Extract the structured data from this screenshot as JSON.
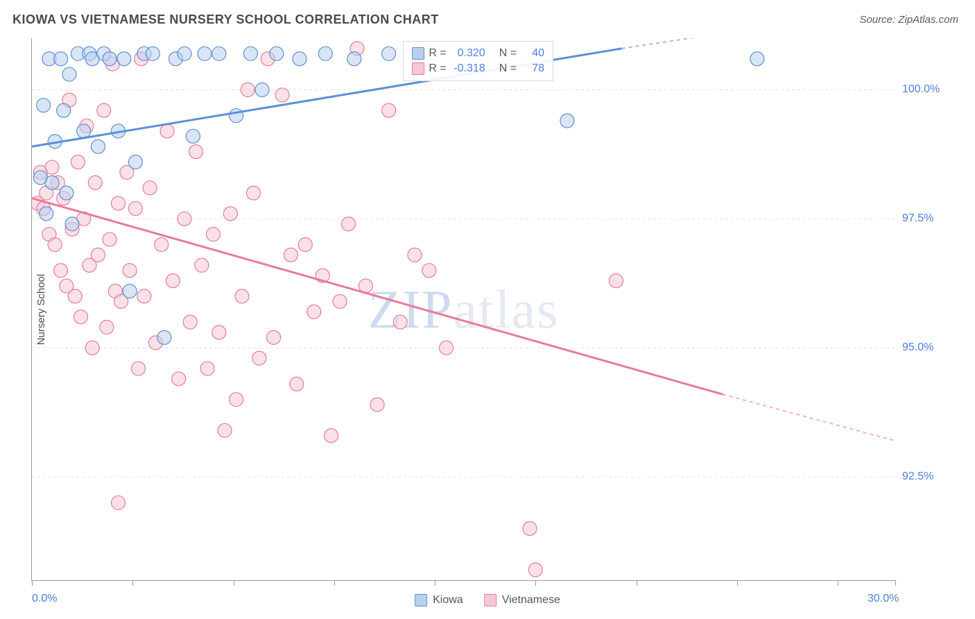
{
  "title": "KIOWA VS VIETNAMESE NURSERY SCHOOL CORRELATION CHART",
  "source": "Source: ZipAtlas.com",
  "ylabel": "Nursery School",
  "watermark": {
    "part1": "ZIP",
    "part2": "atlas"
  },
  "chart": {
    "type": "scatter",
    "xlim": [
      0,
      30
    ],
    "ylim": [
      90.5,
      101.0
    ],
    "xticks": [
      0,
      3.5,
      7,
      10.5,
      14,
      17.5,
      21,
      24.5,
      28,
      30
    ],
    "xticks_labeled": {
      "0": "0.0%",
      "30": "30.0%"
    },
    "yticks": [
      92.5,
      95.0,
      97.5,
      100.0
    ],
    "ytick_labels": [
      "92.5%",
      "95.0%",
      "97.5%",
      "100.0%"
    ],
    "grid_color": "#e2e2e2",
    "background_color": "#ffffff",
    "series": {
      "kiowa": {
        "label": "Kiowa",
        "color": "#5b8fd6",
        "fill": "#b9d0ec",
        "fill_opacity": 0.55,
        "marker_radius": 10,
        "R": "0.320",
        "N": "40",
        "trend": {
          "x1": 0,
          "y1": 98.9,
          "x2": 20.5,
          "y2": 100.8,
          "dash_x2": 30,
          "dash_y2": 101.6
        },
        "points": [
          [
            0.3,
            98.3
          ],
          [
            0.4,
            99.7
          ],
          [
            0.5,
            97.6
          ],
          [
            0.6,
            100.6
          ],
          [
            0.7,
            98.2
          ],
          [
            0.8,
            99.0
          ],
          [
            1.0,
            100.6
          ],
          [
            1.1,
            99.6
          ],
          [
            1.2,
            98.0
          ],
          [
            1.3,
            100.3
          ],
          [
            1.4,
            97.4
          ],
          [
            1.6,
            100.7
          ],
          [
            1.8,
            99.2
          ],
          [
            2.0,
            100.7
          ],
          [
            2.1,
            100.6
          ],
          [
            2.3,
            98.9
          ],
          [
            2.5,
            100.7
          ],
          [
            2.7,
            100.6
          ],
          [
            3.0,
            99.2
          ],
          [
            3.2,
            100.6
          ],
          [
            3.4,
            96.1
          ],
          [
            3.6,
            98.6
          ],
          [
            3.9,
            100.7
          ],
          [
            4.2,
            100.7
          ],
          [
            4.6,
            95.2
          ],
          [
            5.0,
            100.6
          ],
          [
            5.3,
            100.7
          ],
          [
            5.6,
            99.1
          ],
          [
            6.0,
            100.7
          ],
          [
            6.5,
            100.7
          ],
          [
            7.1,
            99.5
          ],
          [
            7.6,
            100.7
          ],
          [
            8.0,
            100.0
          ],
          [
            8.5,
            100.7
          ],
          [
            9.3,
            100.6
          ],
          [
            10.2,
            100.7
          ],
          [
            11.2,
            100.6
          ],
          [
            12.4,
            100.7
          ],
          [
            18.6,
            99.4
          ],
          [
            25.2,
            100.6
          ]
        ]
      },
      "vietnamese": {
        "label": "Vietnamese",
        "color": "#e67b9a",
        "fill": "#f6c8d6",
        "fill_opacity": 0.55,
        "marker_radius": 10,
        "R": "-0.318",
        "N": "78",
        "trend": {
          "x1": 0,
          "y1": 97.9,
          "x2": 24.0,
          "y2": 94.1,
          "dash_x2": 30,
          "dash_y2": 93.2
        },
        "points": [
          [
            0.2,
            97.8
          ],
          [
            0.3,
            98.4
          ],
          [
            0.4,
            97.7
          ],
          [
            0.5,
            98.0
          ],
          [
            0.6,
            97.2
          ],
          [
            0.7,
            98.5
          ],
          [
            0.8,
            97.0
          ],
          [
            0.9,
            98.2
          ],
          [
            1.0,
            96.5
          ],
          [
            1.1,
            97.9
          ],
          [
            1.2,
            96.2
          ],
          [
            1.3,
            99.8
          ],
          [
            1.4,
            97.3
          ],
          [
            1.5,
            96.0
          ],
          [
            1.6,
            98.6
          ],
          [
            1.7,
            95.6
          ],
          [
            1.8,
            97.5
          ],
          [
            1.9,
            99.3
          ],
          [
            2.0,
            96.6
          ],
          [
            2.1,
            95.0
          ],
          [
            2.2,
            98.2
          ],
          [
            2.3,
            96.8
          ],
          [
            2.5,
            99.6
          ],
          [
            2.6,
            95.4
          ],
          [
            2.7,
            97.1
          ],
          [
            2.8,
            100.5
          ],
          [
            2.9,
            96.1
          ],
          [
            3.0,
            97.8
          ],
          [
            3.1,
            95.9
          ],
          [
            3.3,
            98.4
          ],
          [
            3.4,
            96.5
          ],
          [
            3.6,
            97.7
          ],
          [
            3.7,
            94.6
          ],
          [
            3.8,
            100.6
          ],
          [
            3.9,
            96.0
          ],
          [
            4.1,
            98.1
          ],
          [
            4.3,
            95.1
          ],
          [
            4.5,
            97.0
          ],
          [
            4.7,
            99.2
          ],
          [
            4.9,
            96.3
          ],
          [
            5.1,
            94.4
          ],
          [
            5.3,
            97.5
          ],
          [
            5.5,
            95.5
          ],
          [
            5.7,
            98.8
          ],
          [
            5.9,
            96.6
          ],
          [
            6.1,
            94.6
          ],
          [
            6.3,
            97.2
          ],
          [
            6.5,
            95.3
          ],
          [
            6.7,
            93.4
          ],
          [
            6.9,
            97.6
          ],
          [
            7.1,
            94.0
          ],
          [
            7.3,
            96.0
          ],
          [
            7.5,
            100.0
          ],
          [
            7.7,
            98.0
          ],
          [
            7.9,
            94.8
          ],
          [
            8.2,
            100.6
          ],
          [
            8.4,
            95.2
          ],
          [
            8.7,
            99.9
          ],
          [
            9.0,
            96.8
          ],
          [
            9.2,
            94.3
          ],
          [
            9.5,
            97.0
          ],
          [
            9.8,
            95.7
          ],
          [
            10.1,
            96.4
          ],
          [
            10.4,
            93.3
          ],
          [
            10.7,
            95.9
          ],
          [
            11.0,
            97.4
          ],
          [
            11.3,
            100.8
          ],
          [
            11.6,
            96.2
          ],
          [
            12.0,
            93.9
          ],
          [
            12.4,
            99.6
          ],
          [
            12.8,
            95.5
          ],
          [
            13.3,
            96.8
          ],
          [
            13.8,
            96.5
          ],
          [
            14.4,
            95.0
          ],
          [
            17.3,
            91.5
          ],
          [
            17.5,
            90.7
          ],
          [
            20.3,
            96.3
          ],
          [
            3.0,
            92.0
          ]
        ]
      }
    }
  },
  "legend_stats": {
    "rows": [
      {
        "sq_fill": "#b9d0ec",
        "sq_border": "#5b8fd6",
        "r_label": "R =",
        "r_val": "0.320",
        "n_label": "N =",
        "n_val": "40"
      },
      {
        "sq_fill": "#f6c8d6",
        "sq_border": "#e67b9a",
        "r_label": "R =",
        "r_val": "-0.318",
        "n_label": "N =",
        "n_val": "78"
      }
    ]
  },
  "bottom_legend": [
    {
      "sq_fill": "#b9d0ec",
      "sq_border": "#5b8fd6",
      "label": "Kiowa"
    },
    {
      "sq_fill": "#f6c8d6",
      "sq_border": "#e67b9a",
      "label": "Vietnamese"
    }
  ]
}
